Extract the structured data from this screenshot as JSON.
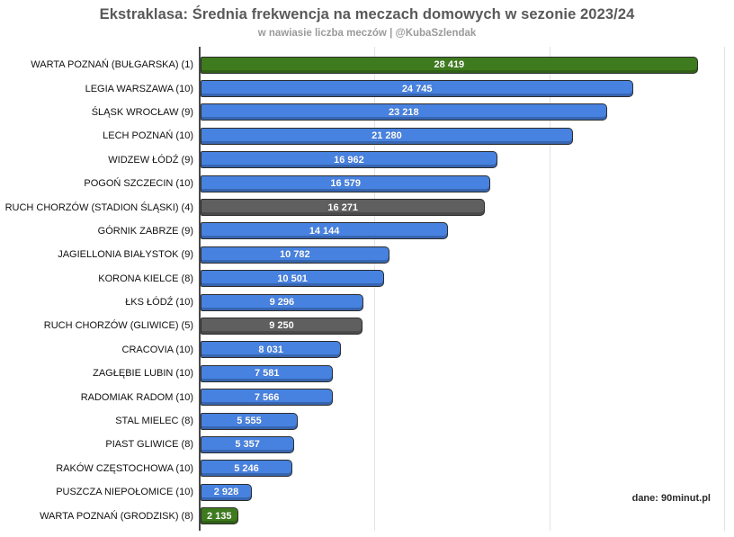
{
  "chart_data": {
    "type": "bar",
    "orientation": "horizontal",
    "title": "Ekstraklasa: Średnia frekwencja na meczach domowych w sezonie 2023/24",
    "subtitle": "w nawiasie liczba meczów | @KubaSzlendak",
    "source_note": "dane: 90minut.pl",
    "xlabel": "",
    "ylabel": "",
    "xlim": [
      0,
      30500
    ],
    "x_gridlines": [
      10000,
      20000,
      30000
    ],
    "grid": true,
    "axis_tick_labels_visible": false,
    "value_label_position": "inside-center",
    "legend": "none",
    "categories": [
      "WARTA POZNAŃ (BUŁGARSKA) (1)",
      "LEGIA WARSZAWA (10)",
      "ŚLĄSK WROCŁAW (9)",
      "LECH POZNAŃ (10)",
      "WIDZEW ŁÓDŹ (9)",
      "POGOŃ SZCZECIN (10)",
      "RUCH CHORZÓW (STADION ŚLĄSKI) (4)",
      "GÓRNIK ZABRZE (9)",
      "JAGIELLONIA BIAŁYSTOK (9)",
      "KORONA KIELCE (8)",
      "ŁKS ŁÓDŹ (10)",
      "RUCH CHORZÓW (GLIWICE) (5)",
      "CRACOVIA (10)",
      "ZAGŁĘBIE LUBIN (10)",
      "RADOMIAK RADOM (10)",
      "STAL MIELEC (8)",
      "PIAST GLIWICE (8)",
      "RAKÓW CZĘSTOCHOWA (10)",
      "PUSZCZA NIEPOŁOMICE (10)",
      "WARTA POZNAŃ (GRODZISK) (8)"
    ],
    "values": [
      28419,
      24745,
      23218,
      21280,
      16962,
      16579,
      16271,
      14144,
      10782,
      10501,
      9296,
      9250,
      8031,
      7581,
      7566,
      5555,
      5357,
      5246,
      2928,
      2135
    ],
    "value_labels": [
      "28 419",
      "24 745",
      "23 218",
      "21 280",
      "16 962",
      "16 579",
      "16 271",
      "14 144",
      "10 782",
      "10 501",
      "9 296",
      "9 250",
      "8 031",
      "7 581",
      "7 566",
      "5 555",
      "5 357",
      "5 246",
      "2 928",
      "2 135"
    ],
    "bar_color_keys": [
      "green",
      "blue",
      "blue",
      "blue",
      "blue",
      "blue",
      "gray",
      "blue",
      "blue",
      "blue",
      "blue",
      "gray",
      "blue",
      "blue",
      "blue",
      "blue",
      "blue",
      "blue",
      "blue",
      "green"
    ],
    "colors": {
      "blue": "#4782e0",
      "green": "#3e7b1e",
      "gray": "#5f5f5f",
      "gridline": "#e3e3e3",
      "axis": "#4a4a4a",
      "title_text": "#595959",
      "subtitle_text": "#9a9a9a",
      "label_text": "#111111",
      "value_text": "#ffffff"
    }
  }
}
